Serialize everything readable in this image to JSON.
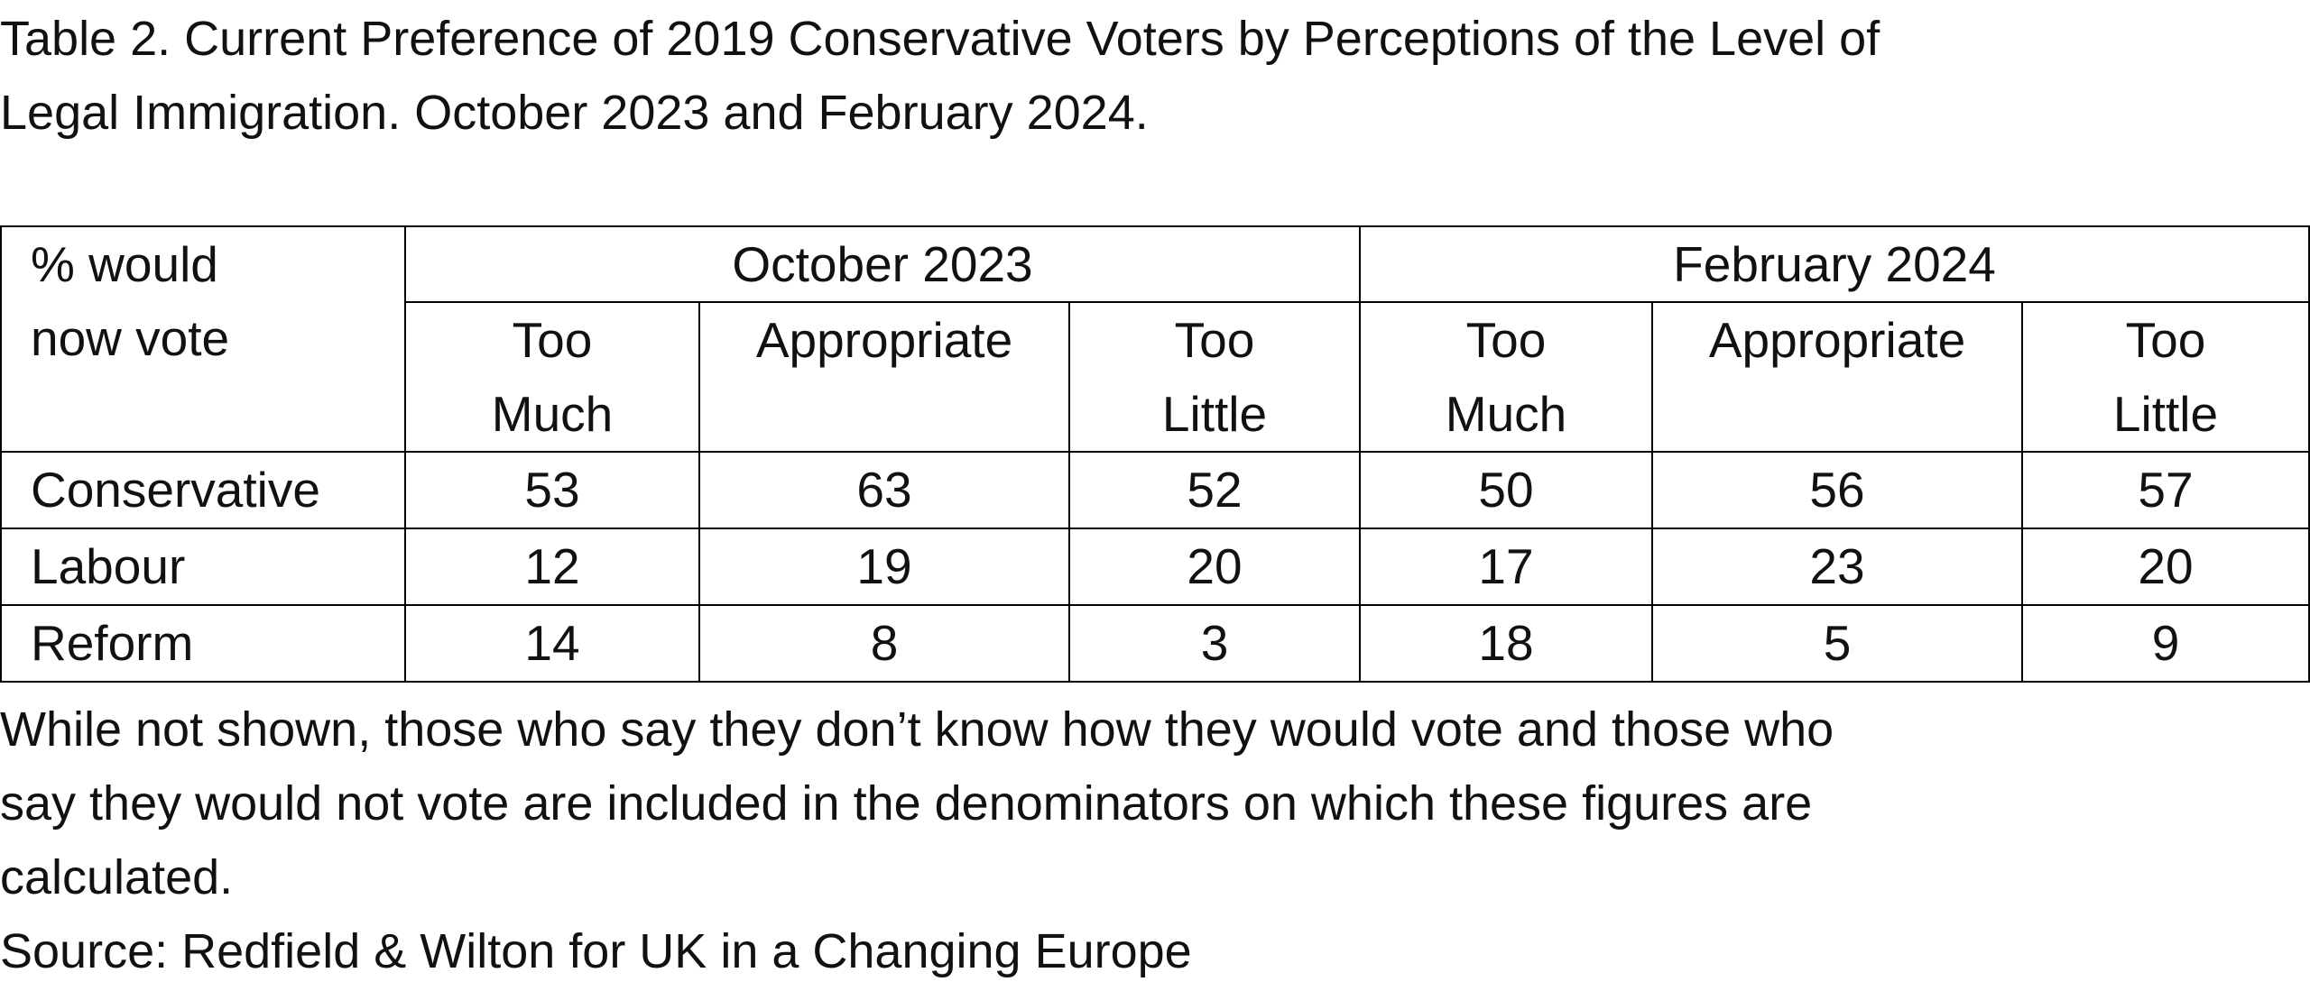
{
  "title": {
    "line1": "Table 2. Current Preference of 2019 Conservative Voters by Perceptions of the Level of",
    "line2": "Legal Immigration. October 2023 and February 2024."
  },
  "table": {
    "corner": {
      "line1": "% would",
      "line2": "now vote"
    },
    "periods": [
      "October 2023",
      "February 2024"
    ],
    "columns": [
      {
        "line1": "Too",
        "line2": "Much"
      },
      {
        "line1": "Appropriate",
        "line2": ""
      },
      {
        "line1": "Too",
        "line2": "Little"
      },
      {
        "line1": "Too",
        "line2": "Much"
      },
      {
        "line1": "Appropriate",
        "line2": ""
      },
      {
        "line1": "Too",
        "line2": "Little"
      }
    ],
    "rows": [
      {
        "party": "Conservative",
        "values": [
          "53",
          "63",
          "52",
          "50",
          "56",
          "57"
        ]
      },
      {
        "party": "Labour",
        "values": [
          "12",
          "19",
          "20",
          "17",
          "23",
          "20"
        ]
      },
      {
        "party": "Reform",
        "values": [
          "14",
          "8",
          "3",
          "18",
          "5",
          "9"
        ]
      }
    ]
  },
  "notes": {
    "note_line1": "While not shown, those who say they don’t know how they would vote and those who",
    "note_line2": "say they would not vote are included in the denominators on which these figures are",
    "note_line3": "calculated.",
    "source": "Source: Redfield & Wilton for UK in a Changing Europe"
  }
}
